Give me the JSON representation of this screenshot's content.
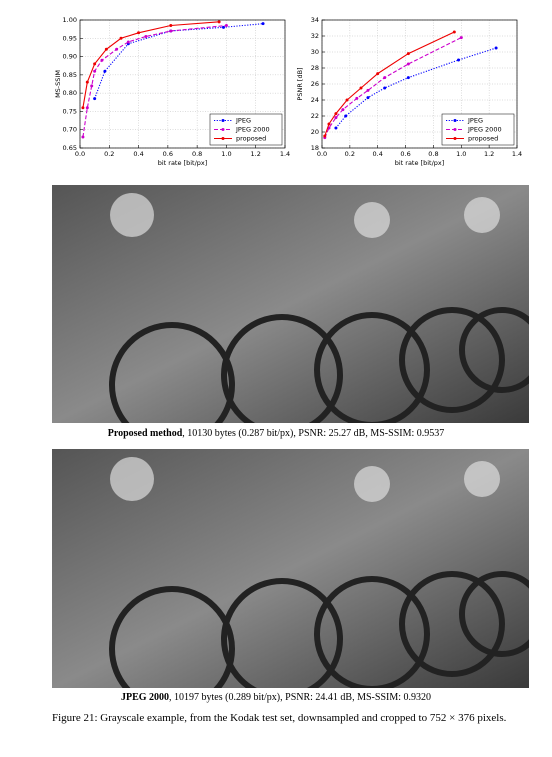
{
  "chart_data": [
    {
      "type": "line",
      "xlabel": "bit rate [bit/px]",
      "ylabel": "MS-SSIM",
      "xlim": [
        0,
        1.4
      ],
      "ylim": [
        0.65,
        1.0
      ],
      "xticks": [
        {
          "value": 0,
          "label": "0.0"
        },
        0.2,
        0.4,
        0.6,
        0.8,
        {
          "value": 1.0,
          "label": "1.0"
        },
        1.2,
        1.4
      ],
      "yticks": [
        0.65,
        {
          "value": 0.7,
          "label": "0.70"
        },
        0.75,
        {
          "value": 0.8,
          "label": "0.80"
        },
        0.85,
        {
          "value": 0.9,
          "label": "0.90"
        },
        0.95,
        {
          "value": 1.0,
          "label": "1.00"
        }
      ],
      "grid": true,
      "legend": "lower right",
      "series": [
        {
          "name": "JPEG",
          "color": "#0000ff",
          "linestyle": "dotted",
          "x": [
            0.1,
            0.17,
            0.33,
            0.62,
            0.98,
            1.25
          ],
          "values": [
            0.785,
            0.86,
            0.935,
            0.97,
            0.98,
            0.99
          ]
        },
        {
          "name": "JPEG 2000",
          "color": "#cc00cc",
          "linestyle": "dashed",
          "x": [
            0.02,
            0.05,
            0.08,
            0.1,
            0.15,
            0.25,
            0.33,
            0.45,
            0.62,
            1.0
          ],
          "values": [
            0.68,
            0.76,
            0.82,
            0.86,
            0.89,
            0.92,
            0.94,
            0.955,
            0.97,
            0.985
          ]
        },
        {
          "name": "proposed",
          "color": "#ee0000",
          "linestyle": "solid",
          "x": [
            0.02,
            0.05,
            0.1,
            0.18,
            0.28,
            0.4,
            0.62,
            0.95
          ],
          "values": [
            0.76,
            0.83,
            0.88,
            0.92,
            0.95,
            0.965,
            0.985,
            0.995
          ]
        }
      ]
    },
    {
      "type": "line",
      "xlabel": "bit rate [bit/px]",
      "ylabel": "PSNR [dB]",
      "xlim": [
        0,
        1.4
      ],
      "ylim": [
        18,
        34
      ],
      "xticks": [
        {
          "value": 0,
          "label": "0.0"
        },
        0.2,
        0.4,
        0.6,
        0.8,
        {
          "value": 1.0,
          "label": "1.0"
        },
        1.2,
        1.4
      ],
      "yticks": [
        18,
        20,
        22,
        24,
        26,
        28,
        30,
        32,
        34
      ],
      "grid": true,
      "legend": "lower right",
      "series": [
        {
          "name": "JPEG",
          "color": "#0000ff",
          "linestyle": "dotted",
          "x": [
            0.1,
            0.17,
            0.33,
            0.45,
            0.62,
            0.98,
            1.25
          ],
          "values": [
            20.5,
            22,
            24.3,
            25.5,
            26.8,
            29,
            30.5
          ]
        },
        {
          "name": "JPEG 2000",
          "color": "#cc00cc",
          "linestyle": "dashed",
          "x": [
            0.02,
            0.05,
            0.1,
            0.15,
            0.25,
            0.33,
            0.45,
            0.62,
            1.0
          ],
          "values": [
            19.3,
            20.5,
            21.8,
            22.8,
            24.2,
            25.2,
            26.8,
            28.5,
            31.8
          ]
        },
        {
          "name": "proposed",
          "color": "#ee0000",
          "linestyle": "solid",
          "x": [
            0.02,
            0.05,
            0.1,
            0.18,
            0.28,
            0.4,
            0.62,
            0.95
          ],
          "values": [
            19.5,
            21,
            22.3,
            24,
            25.5,
            27.3,
            29.8,
            32.5
          ]
        }
      ]
    }
  ],
  "captions": [
    {
      "bold": "Proposed method",
      "text": ", 10130 bytes (0.287 bit/px), PSNR: 25.27 dB, MS-SSIM: 0.9537"
    },
    {
      "bold": "JPEG 2000",
      "text": ", 10197 bytes (0.289 bit/px), PSNR: 24.41 dB, MS-SSIM: 0.9320"
    }
  ],
  "figure_caption": "Figure 21: Grayscale example, from the Kodak test set, downsampled and cropped to 752 × 376 pixels."
}
